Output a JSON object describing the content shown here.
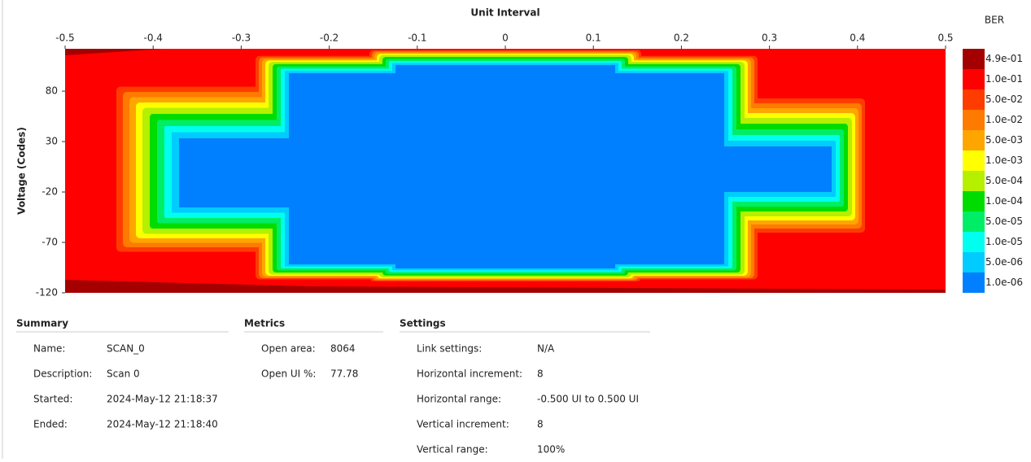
{
  "chart_data": {
    "type": "eye-scan",
    "x_label": "Unit Interval",
    "y_label": "Voltage (Codes)",
    "xlim": [
      -0.5,
      0.5
    ],
    "xticks": [
      -0.5,
      -0.4,
      -0.3,
      -0.2,
      -0.1,
      0,
      0.1,
      0.2,
      0.3,
      0.4,
      0.5
    ],
    "ylim": [
      -120,
      122
    ],
    "yticks": [
      80,
      30,
      -20,
      -70,
      -120
    ],
    "colorbar": {
      "title": "BER",
      "levels": [
        {
          "value": 0.49,
          "label": "4.9e-01",
          "color": "#a50000"
        },
        {
          "value": 0.1,
          "label": "1.0e-01",
          "color": "#ff0000"
        },
        {
          "value": 0.05,
          "label": "5.0e-02",
          "color": "#ff3c00"
        },
        {
          "value": 0.01,
          "label": "1.0e-02",
          "color": "#ff7a00"
        },
        {
          "value": 0.005,
          "label": "5.0e-03",
          "color": "#ffa500"
        },
        {
          "value": 0.001,
          "label": "1.0e-03",
          "color": "#ffff00"
        },
        {
          "value": 0.0005,
          "label": "5.0e-04",
          "color": "#b5f000"
        },
        {
          "value": 0.0001,
          "label": "1.0e-04",
          "color": "#00dc00"
        },
        {
          "value": 5e-05,
          "label": "5.0e-05",
          "color": "#00ee66"
        },
        {
          "value": 1e-05,
          "label": "1.0e-05",
          "color": "#00ffee"
        },
        {
          "value": 5e-06,
          "label": "5.0e-06",
          "color": "#00ccff"
        },
        {
          "value": 1e-06,
          "label": "1.0e-06",
          "color": "#0080ff"
        }
      ]
    }
  },
  "panels": [
    {
      "title": "Summary",
      "rows": [
        [
          "Name:",
          "SCAN_0"
        ],
        [
          "Description:",
          "Scan 0"
        ],
        [
          "Started:",
          "2024-May-12 21:18:37"
        ],
        [
          "Ended:",
          "2024-May-12 21:18:40"
        ]
      ]
    },
    {
      "title": "Metrics",
      "rows": [
        [
          "Open area:",
          "8064"
        ],
        [
          "Open UI %:",
          "77.78"
        ]
      ]
    },
    {
      "title": "Settings",
      "rows": [
        [
          "Link settings:",
          "N/A"
        ],
        [
          "Horizontal increment:",
          "8"
        ],
        [
          "Horizontal range:",
          "-0.500 UI to 0.500 UI"
        ],
        [
          "Vertical increment:",
          "8"
        ],
        [
          "Vertical range:",
          "100%"
        ]
      ]
    }
  ]
}
